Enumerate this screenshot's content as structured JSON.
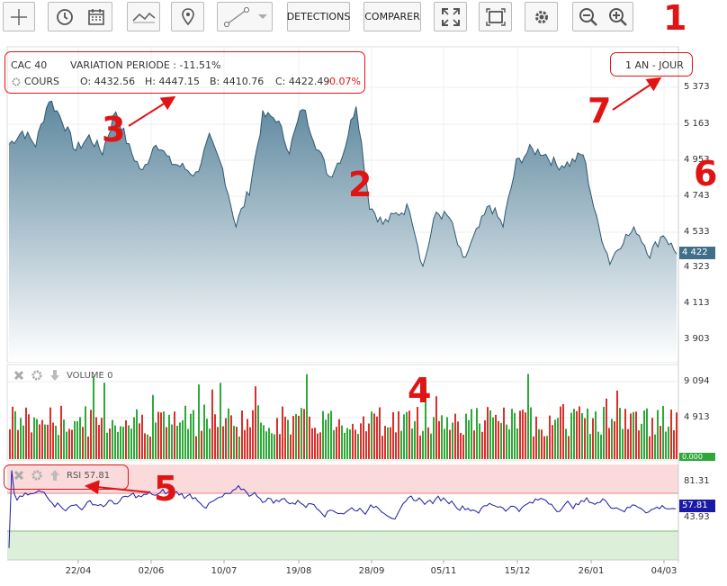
{
  "toolbar": {
    "detections_label": "DETECTIONS",
    "comparer_label": "COMPARER"
  },
  "annotations": [
    "1",
    "2",
    "3",
    "4",
    "5",
    "6",
    "7"
  ],
  "chart_header": {
    "index_name": "CAC 40",
    "variation_label": "VARIATION PERIODE : -11.51%",
    "mode_label": "COURS",
    "open": "O: 4432.56",
    "high": "H: 4447.15",
    "low": "B: 4410.76",
    "close": "C: 4422.49",
    "change": "-0.07%"
  },
  "period_button": "1 AN - JOUR",
  "volume_panel": {
    "label": "VOLUME",
    "value": "0"
  },
  "rsi_panel": {
    "label": "RSI",
    "value": "57.81"
  },
  "colors": {
    "area": "#5f8ca5",
    "up": "#2fa83a",
    "down": "#d9302c",
    "rsi_line": "#1a1aa6",
    "annotation": "#e01414"
  },
  "chart_data": [
    {
      "type": "area",
      "title": "CAC 40",
      "y_ticks": [
        "5 373",
        "5 163",
        "4 953",
        "4 743",
        "4 533",
        "4 323",
        "4 113",
        "3 903"
      ],
      "x_ticks": [
        "22/04",
        "02/06",
        "10/07",
        "19/08",
        "28/09",
        "05/11",
        "15/12",
        "26/01",
        "04/03"
      ],
      "last_price_label": "4 422",
      "ylim": [
        3850,
        5430
      ],
      "x": [
        0,
        2,
        4,
        6,
        8,
        10,
        12,
        14,
        16,
        18,
        20,
        22,
        24,
        26,
        28,
        30,
        32,
        34,
        36,
        38,
        40,
        42,
        44,
        46,
        48,
        50,
        52,
        54,
        56,
        58,
        60,
        62,
        64,
        66,
        68,
        70,
        72,
        74,
        76,
        78,
        80,
        82,
        84,
        86,
        88,
        90,
        92,
        94,
        96,
        98,
        100
      ],
      "values": [
        5000,
        5070,
        5000,
        5240,
        5130,
        4970,
        5040,
        4960,
        5180,
        4980,
        4850,
        5020,
        4910,
        4880,
        4840,
        5030,
        4870,
        4570,
        4760,
        5150,
        5140,
        4970,
        5200,
        5000,
        4830,
        4950,
        5220,
        4680,
        4580,
        4630,
        4670,
        4350,
        4640,
        4610,
        4380,
        4530,
        4680,
        4570,
        4900,
        4970,
        4960,
        4890,
        4900,
        4950,
        4600,
        4380,
        4500,
        4550,
        4420,
        4530,
        4420
      ]
    },
    {
      "type": "bar",
      "title": "VOLUME",
      "y_ticks": [
        "9 094",
        "4 913"
      ],
      "last_value_label": "0.000"
    },
    {
      "type": "line",
      "title": "RSI",
      "y_ticks": [
        "81.31",
        "43.93"
      ],
      "last_value_label": "57.81",
      "levels": [
        70,
        30
      ]
    }
  ]
}
